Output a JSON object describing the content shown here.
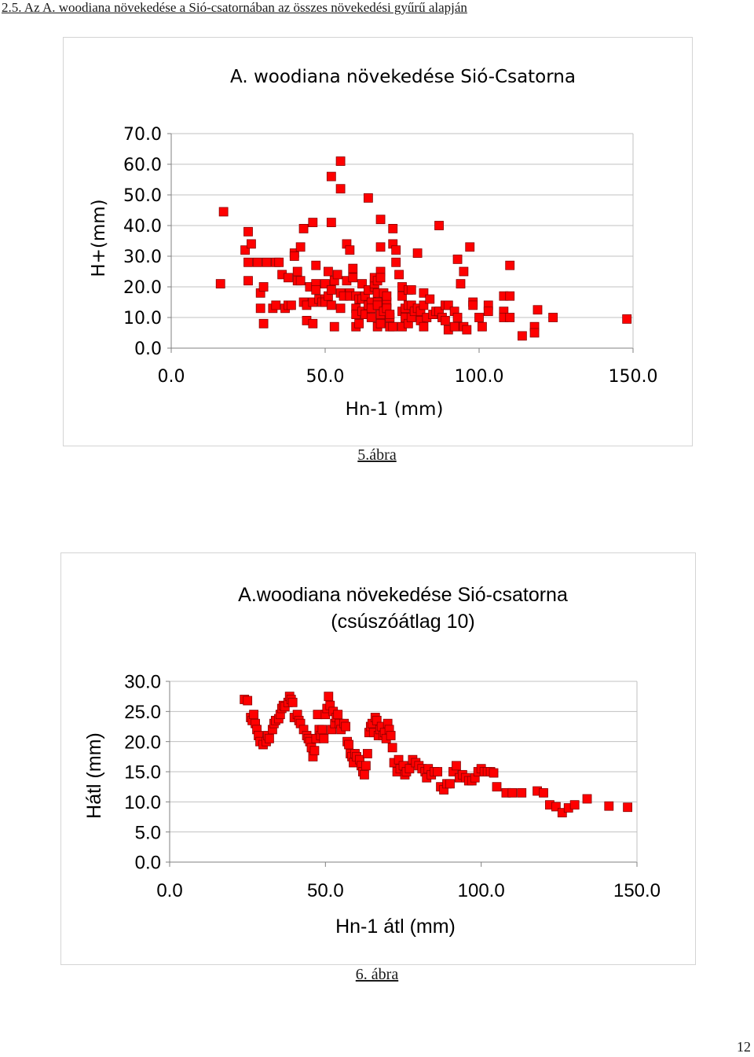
{
  "page": {
    "heading": "2.5. Az A. woodiana növekedése a Sió-csatornában az összes növekedési gyűrű alapján",
    "page_number": "12"
  },
  "colors": {
    "marker_fill": "#ff0000",
    "marker_stroke": "#8b0000",
    "grid": "#c0c0c0",
    "axis": "#808080"
  },
  "chart_data": [
    {
      "type": "scatter",
      "caption": "5.ábra",
      "title": [
        "A. woodiana növekedése Sió-Csatorna"
      ],
      "xlabel": "Hn-1 (mm)",
      "ylabel": "H+(mm)",
      "xlim": [
        0,
        150
      ],
      "ylim": [
        0,
        70
      ],
      "xticks": [
        "0.0",
        "50.0",
        "100.0",
        "150.0"
      ],
      "yticks": [
        "0.0",
        "10.0",
        "20.0",
        "30.0",
        "40.0",
        "50.0",
        "60.0",
        "70.0"
      ],
      "grid": "horizontal",
      "marker": "square",
      "points": [
        [
          17,
          44.5
        ],
        [
          16,
          21
        ],
        [
          24,
          32
        ],
        [
          25,
          38
        ],
        [
          26,
          34
        ],
        [
          25,
          28
        ],
        [
          25,
          22
        ],
        [
          28,
          28
        ],
        [
          29,
          18
        ],
        [
          29,
          13
        ],
        [
          30,
          20
        ],
        [
          30,
          8
        ],
        [
          31,
          28
        ],
        [
          33,
          13
        ],
        [
          34,
          28
        ],
        [
          34,
          14
        ],
        [
          35,
          28
        ],
        [
          36,
          24
        ],
        [
          38,
          23
        ],
        [
          37,
          13
        ],
        [
          38,
          14
        ],
        [
          39,
          14
        ],
        [
          40,
          31
        ],
        [
          40,
          30
        ],
        [
          41,
          25
        ],
        [
          41,
          22
        ],
        [
          42,
          33
        ],
        [
          42,
          22
        ],
        [
          43,
          39
        ],
        [
          43,
          15
        ],
        [
          44,
          9
        ],
        [
          44,
          14
        ],
        [
          45,
          20
        ],
        [
          46,
          8
        ],
        [
          46,
          15
        ],
        [
          47,
          27
        ],
        [
          47,
          21
        ],
        [
          47,
          19
        ],
        [
          48,
          16
        ],
        [
          49,
          15
        ],
        [
          50,
          16
        ],
        [
          50,
          15
        ],
        [
          50,
          21
        ],
        [
          51,
          25
        ],
        [
          51,
          17
        ],
        [
          52,
          19
        ],
        [
          52,
          14
        ],
        [
          52,
          41
        ],
        [
          53,
          7
        ],
        [
          53,
          22
        ],
        [
          54,
          24
        ],
        [
          55,
          13
        ],
        [
          55,
          18
        ],
        [
          56,
          17
        ],
        [
          57,
          34
        ],
        [
          57,
          22
        ],
        [
          58,
          18
        ],
        [
          58,
          17
        ],
        [
          59,
          26
        ],
        [
          59,
          23
        ],
        [
          60,
          17
        ],
        [
          60,
          13
        ],
        [
          60,
          11
        ],
        [
          60,
          7
        ],
        [
          61,
          8
        ],
        [
          61,
          16
        ],
        [
          62,
          21
        ],
        [
          62,
          16
        ],
        [
          62,
          12
        ],
        [
          63,
          11
        ],
        [
          63,
          17
        ],
        [
          64,
          14
        ],
        [
          64,
          19
        ],
        [
          65,
          15
        ],
        [
          65,
          13
        ],
        [
          65,
          10
        ],
        [
          66,
          20
        ],
        [
          66,
          21
        ],
        [
          66,
          23
        ],
        [
          67,
          22
        ],
        [
          67,
          18
        ],
        [
          67,
          15
        ],
        [
          67,
          14
        ],
        [
          67,
          7
        ],
        [
          68,
          8
        ],
        [
          68,
          11
        ],
        [
          68,
          25
        ],
        [
          68,
          33
        ],
        [
          68,
          42
        ],
        [
          68,
          23
        ],
        [
          69,
          18
        ],
        [
          69,
          12
        ],
        [
          70,
          15
        ],
        [
          70,
          13
        ],
        [
          70,
          17
        ],
        [
          70,
          13
        ],
        [
          71,
          7
        ],
        [
          71,
          10
        ],
        [
          71,
          11
        ],
        [
          72,
          7
        ],
        [
          72,
          34
        ],
        [
          72,
          39
        ],
        [
          73,
          28
        ],
        [
          73,
          32
        ],
        [
          74,
          24
        ],
        [
          75,
          7
        ],
        [
          75,
          12
        ],
        [
          75,
          17
        ],
        [
          75,
          20
        ],
        [
          76,
          13
        ],
        [
          76,
          10
        ],
        [
          77,
          8
        ],
        [
          77,
          14
        ],
        [
          77,
          19
        ],
        [
          78,
          10
        ],
        [
          78,
          14
        ],
        [
          78,
          19
        ],
        [
          79,
          12
        ],
        [
          80,
          13
        ],
        [
          80,
          31
        ],
        [
          81,
          12
        ],
        [
          81,
          9
        ],
        [
          82,
          18
        ],
        [
          82,
          14
        ],
        [
          82,
          7
        ],
        [
          83,
          10
        ],
        [
          84,
          16
        ],
        [
          85,
          11
        ],
        [
          86,
          12
        ],
        [
          87,
          40
        ],
        [
          87,
          12
        ],
        [
          88,
          10
        ],
        [
          89,
          14
        ],
        [
          89,
          9
        ],
        [
          90,
          14
        ],
        [
          90,
          6
        ],
        [
          92,
          7
        ],
        [
          92,
          12
        ],
        [
          93,
          10
        ],
        [
          93,
          29
        ],
        [
          94,
          21
        ],
        [
          95,
          25
        ],
        [
          95,
          7
        ],
        [
          96,
          6
        ],
        [
          97,
          33
        ],
        [
          98,
          15
        ],
        [
          98,
          14
        ],
        [
          100,
          10
        ],
        [
          101,
          7
        ],
        [
          103,
          14
        ],
        [
          103,
          12
        ],
        [
          108,
          17
        ],
        [
          108,
          12
        ],
        [
          108,
          10
        ],
        [
          110,
          27
        ],
        [
          110,
          17
        ],
        [
          110,
          10
        ],
        [
          114,
          4
        ],
        [
          118,
          7
        ],
        [
          118,
          5
        ],
        [
          119,
          12.5
        ],
        [
          124,
          10
        ],
        [
          148,
          9.5
        ],
        [
          157,
          9
        ],
        [
          64,
          49
        ],
        [
          52,
          56
        ],
        [
          55,
          61
        ],
        [
          46,
          41
        ],
        [
          58,
          32
        ],
        [
          55,
          52
        ]
      ]
    },
    {
      "type": "scatter",
      "caption": "6. ábra",
      "title": [
        "A.woodiana növekedése Sió-csatorna",
        "(csúszóátlag 10)"
      ],
      "xlabel": "Hn-1 átl (mm)",
      "ylabel": "Hátl (mm)",
      "xlim": [
        0,
        150
      ],
      "ylim": [
        0,
        30
      ],
      "xticks": [
        "0.0",
        "50.0",
        "100.0",
        "150.0"
      ],
      "yticks": [
        "0.0",
        "5.0",
        "10.0",
        "15.0",
        "20.0",
        "25.0",
        "30.0"
      ],
      "grid": "horizontal",
      "marker": "square",
      "points": [
        [
          24,
          27
        ],
        [
          25,
          26.8
        ],
        [
          26,
          24
        ],
        [
          26.5,
          23.5
        ],
        [
          27,
          24.5
        ],
        [
          27.5,
          23
        ],
        [
          28,
          22
        ],
        [
          28.5,
          21
        ],
        [
          29,
          20
        ],
        [
          30,
          19.5
        ],
        [
          31,
          20
        ],
        [
          31.5,
          21
        ],
        [
          32,
          20.5
        ],
        [
          33,
          22
        ],
        [
          33.5,
          23
        ],
        [
          34,
          23.5
        ],
        [
          35,
          23.8
        ],
        [
          35.5,
          24.5
        ],
        [
          36,
          25.5
        ],
        [
          36.5,
          26
        ],
        [
          37,
          25.8
        ],
        [
          38,
          26.5
        ],
        [
          38.5,
          27.5
        ],
        [
          39,
          27
        ],
        [
          39.5,
          26.5
        ],
        [
          40,
          24
        ],
        [
          41,
          24.5
        ],
        [
          41.5,
          23.5
        ],
        [
          42,
          23
        ],
        [
          43,
          22
        ],
        [
          44,
          21
        ],
        [
          44.5,
          20.5
        ],
        [
          45,
          20
        ],
        [
          45.5,
          19
        ],
        [
          46,
          17.5
        ],
        [
          46.5,
          18.5
        ],
        [
          47,
          20.5
        ],
        [
          47.5,
          24.5
        ],
        [
          48,
          22
        ],
        [
          48.5,
          21
        ],
        [
          49,
          22
        ],
        [
          49.5,
          20.5
        ],
        [
          50,
          24.5
        ],
        [
          50.5,
          25.5
        ],
        [
          51,
          27.5
        ],
        [
          51.5,
          26
        ],
        [
          52,
          22
        ],
        [
          52.5,
          25
        ],
        [
          53,
          23
        ],
        [
          53.5,
          24
        ],
        [
          54,
          24.5
        ],
        [
          54.5,
          23
        ],
        [
          55,
          22
        ],
        [
          56,
          23
        ],
        [
          56.5,
          22.5
        ],
        [
          57,
          20
        ],
        [
          57.5,
          19.5
        ],
        [
          58,
          18
        ],
        [
          58.5,
          17.5
        ],
        [
          59,
          16.5
        ],
        [
          59.5,
          18
        ],
        [
          60,
          17.5
        ],
        [
          61,
          17
        ],
        [
          61.5,
          16
        ],
        [
          62,
          15
        ],
        [
          62.5,
          14.5
        ],
        [
          63,
          16
        ],
        [
          63.5,
          18
        ],
        [
          64,
          21.5
        ],
        [
          64.5,
          22.5
        ],
        [
          65,
          23
        ],
        [
          65.5,
          21.5
        ],
        [
          66,
          24
        ],
        [
          66.5,
          23.5
        ],
        [
          67,
          21
        ],
        [
          67.5,
          22
        ],
        [
          68,
          22.5
        ],
        [
          68.5,
          21
        ],
        [
          69,
          21.5
        ],
        [
          69.5,
          20.5
        ],
        [
          70,
          23
        ],
        [
          70.5,
          22
        ],
        [
          71,
          21
        ],
        [
          71.5,
          19
        ],
        [
          72,
          16.5
        ],
        [
          73,
          15
        ],
        [
          73.5,
          17
        ],
        [
          74,
          15.5
        ],
        [
          75,
          16
        ],
        [
          75.5,
          14.5
        ],
        [
          76,
          15
        ],
        [
          77,
          15.5
        ],
        [
          78,
          17
        ],
        [
          79,
          16.5
        ],
        [
          80,
          16
        ],
        [
          81,
          15.5
        ],
        [
          82,
          15
        ],
        [
          82.5,
          14
        ],
        [
          83,
          15.5
        ],
        [
          84,
          14.5
        ],
        [
          85,
          15
        ],
        [
          86,
          15
        ],
        [
          87,
          12.5
        ],
        [
          88,
          12
        ],
        [
          89,
          13
        ],
        [
          90,
          13
        ],
        [
          91,
          15
        ],
        [
          92,
          16
        ],
        [
          93,
          14
        ],
        [
          94,
          14.5
        ],
        [
          95,
          14
        ],
        [
          96,
          13.5
        ],
        [
          97,
          13.5
        ],
        [
          98,
          14
        ],
        [
          99,
          15
        ],
        [
          100,
          15.5
        ],
        [
          101,
          15
        ],
        [
          102,
          15
        ],
        [
          103,
          15
        ],
        [
          104,
          14.8
        ],
        [
          105,
          12.5
        ],
        [
          108,
          11.5
        ],
        [
          110,
          11.5
        ],
        [
          113,
          11.5
        ],
        [
          118,
          11.8
        ],
        [
          120,
          11.5
        ],
        [
          122,
          9.5
        ],
        [
          124,
          9.2
        ],
        [
          126,
          8.2
        ],
        [
          128,
          9
        ],
        [
          130,
          9.5
        ],
        [
          134,
          10.5
        ],
        [
          141,
          9.3
        ],
        [
          147,
          9.1
        ]
      ]
    }
  ]
}
